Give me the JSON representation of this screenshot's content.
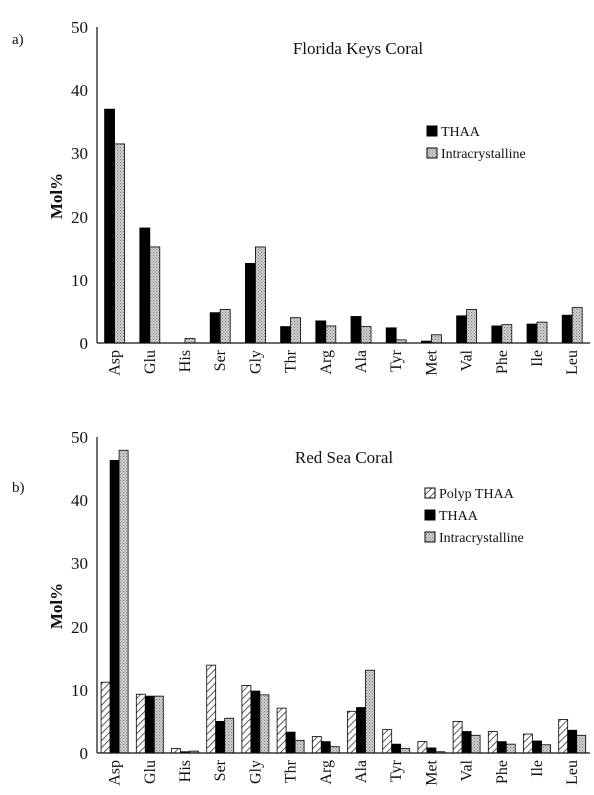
{
  "chart_data": [
    {
      "panel_label": "a)",
      "type": "bar",
      "title": "Florida Keys Coral",
      "ylabel": "Mol%",
      "ylim": [
        0,
        50
      ],
      "yticks": [
        "0",
        "10",
        "20",
        "30",
        "40",
        "50"
      ],
      "categories": [
        "Asp",
        "Glu",
        "His",
        "Ser",
        "Gly",
        "Thr",
        "Arg",
        "Ala",
        "Tyr",
        "Met",
        "Val",
        "Phe",
        "Ile",
        "Leu"
      ],
      "legend_position": "right",
      "series": [
        {
          "name": "THAA",
          "color": "#000000",
          "pattern": "solid",
          "values": [
            37.0,
            18.2,
            0,
            4.8,
            12.6,
            2.6,
            3.5,
            4.2,
            2.4,
            0.3,
            4.3,
            2.7,
            3.0,
            4.4
          ]
        },
        {
          "name": "Intracrystalline",
          "color": "#c0c0c0",
          "pattern": "stipple",
          "values": [
            31.5,
            15.2,
            0.7,
            5.3,
            15.2,
            4.0,
            2.7,
            2.6,
            0.5,
            1.3,
            5.3,
            2.9,
            3.3,
            5.6
          ]
        }
      ]
    },
    {
      "panel_label": "b)",
      "type": "bar",
      "title": "Red Sea Coral",
      "ylabel": "Mol%",
      "ylim": [
        0,
        50
      ],
      "yticks": [
        "0",
        "10",
        "20",
        "30",
        "40",
        "50"
      ],
      "categories": [
        "Asp",
        "Glu",
        "His",
        "Ser",
        "Gly",
        "Thr",
        "Arg",
        "Ala",
        "Tyr",
        "Met",
        "Val",
        "Phe",
        "Ile",
        "Leu"
      ],
      "legend_position": "right",
      "series": [
        {
          "name": "Polyp THAA",
          "color": "#ffffff",
          "pattern": "hatch",
          "values": [
            11.2,
            9.3,
            0.7,
            13.9,
            10.7,
            7.1,
            2.6,
            6.6,
            3.7,
            1.8,
            5.0,
            3.4,
            3.0,
            5.3
          ]
        },
        {
          "name": "THAA",
          "color": "#000000",
          "pattern": "solid",
          "values": [
            46.3,
            9.0,
            0.2,
            5.0,
            9.8,
            3.3,
            1.8,
            7.2,
            1.4,
            0.8,
            3.4,
            1.8,
            1.9,
            3.6
          ]
        },
        {
          "name": "Intracrystalline",
          "color": "#c0c0c0",
          "pattern": "stipple",
          "values": [
            47.9,
            9.0,
            0.3,
            5.5,
            9.2,
            2.0,
            1.0,
            13.1,
            0.7,
            0.2,
            2.8,
            1.4,
            1.3,
            2.8
          ]
        }
      ]
    }
  ]
}
